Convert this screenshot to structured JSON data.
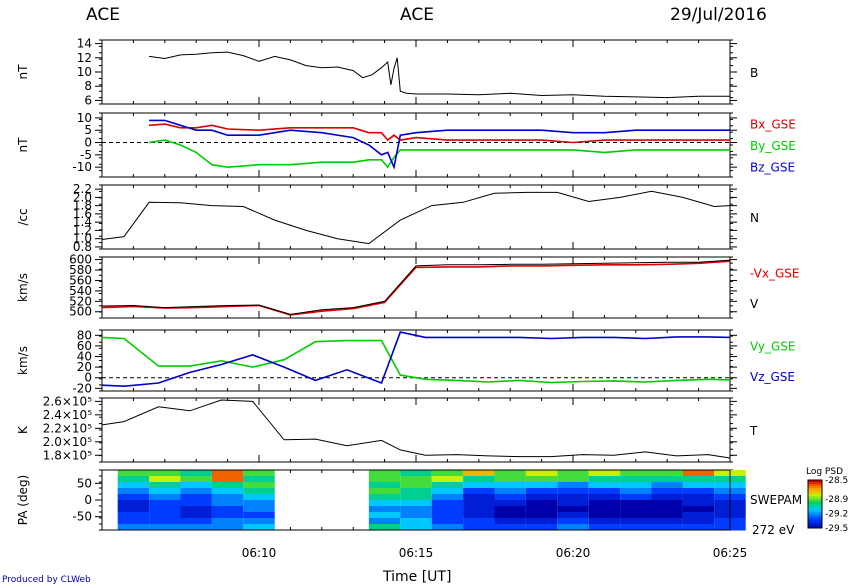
{
  "header": {
    "left_title": "ACE",
    "center_title": "ACE",
    "date": "29/Jul/2016"
  },
  "footer": {
    "credit": "Produced by CLWeb"
  },
  "colors": {
    "black": "#000000",
    "red": "#dd0000",
    "green": "#00cc00",
    "blue": "#0000cc"
  },
  "chart_data": [
    {
      "type": "line",
      "ylabel": "nT",
      "ylim": [
        5.5,
        14.5
      ],
      "yticks": [
        "14",
        "12",
        "10",
        "8",
        "6"
      ],
      "ytick_values": [
        14,
        12,
        10,
        8,
        6
      ],
      "series": [
        {
          "name": "B",
          "color": "#000000",
          "x": [
            6.5,
            7,
            7.5,
            8,
            8.5,
            9,
            9.5,
            10,
            10.5,
            11,
            11.5,
            12,
            12.5,
            13,
            13.3,
            13.6,
            13.9,
            14.1,
            14.2,
            14.3,
            14.4,
            14.5,
            14.7,
            15,
            16,
            17,
            18,
            19,
            20,
            21,
            22,
            23,
            24,
            25
          ],
          "y": [
            12.2,
            11.9,
            12.4,
            12.5,
            12.7,
            12.8,
            12.3,
            11.5,
            12.2,
            11.7,
            10.9,
            10.6,
            10.7,
            10.2,
            9.2,
            9.6,
            10.6,
            11.4,
            8.2,
            10.5,
            12,
            7.3,
            7.0,
            6.9,
            6.9,
            6.8,
            7.0,
            6.7,
            6.8,
            6.6,
            6.5,
            6.4,
            6.6,
            6.6
          ]
        }
      ]
    },
    {
      "type": "line",
      "ylabel": "nT",
      "ylim": [
        -14,
        12
      ],
      "yticks": [
        "10",
        "5",
        "0",
        "-5",
        "-10"
      ],
      "ytick_values": [
        10,
        5,
        0,
        -5,
        -10
      ],
      "dashed_zero": true,
      "series": [
        {
          "name": "Bx_GSE",
          "color": "#dd0000",
          "x": [
            6.5,
            7,
            7.5,
            8,
            8.5,
            9,
            10,
            11,
            12,
            13,
            13.5,
            13.9,
            14.1,
            14.3,
            14.5,
            15,
            16,
            17,
            18,
            19,
            20,
            21,
            22,
            23,
            24,
            25
          ],
          "y": [
            7,
            7.5,
            6,
            6,
            7,
            5.5,
            5,
            6,
            6,
            6,
            4,
            4,
            1,
            3,
            1,
            2,
            1,
            1,
            1,
            1,
            0,
            1,
            1,
            1,
            1,
            1
          ]
        },
        {
          "name": "By_GSE",
          "color": "#00cc00",
          "x": [
            6.5,
            7,
            7.5,
            8,
            8.5,
            9,
            10,
            11,
            12,
            13,
            13.5,
            13.9,
            14.1,
            14.3,
            14.5,
            15,
            16,
            17,
            18,
            19,
            20,
            21,
            22,
            23,
            24,
            25
          ],
          "y": [
            0,
            1,
            -1,
            -4,
            -9,
            -10,
            -9,
            -9,
            -8,
            -8,
            -7,
            -7,
            -10,
            -6,
            -3,
            -3,
            -3,
            -3,
            -3,
            -3,
            -3,
            -4,
            -3,
            -3,
            -3,
            -3
          ]
        },
        {
          "name": "Bz_GSE",
          "color": "#0000cc",
          "x": [
            6.5,
            7,
            7.5,
            8,
            8.5,
            9,
            10,
            11,
            12,
            13,
            13.5,
            13.9,
            14.1,
            14.3,
            14.5,
            15,
            16,
            17,
            18,
            19,
            20,
            21,
            22,
            23,
            24,
            25
          ],
          "y": [
            9,
            9,
            7,
            5,
            5,
            3,
            3,
            5,
            4,
            2,
            -1,
            -5,
            -4,
            -10,
            3,
            4,
            5,
            5,
            5,
            5,
            4,
            4,
            5,
            5,
            5,
            5
          ]
        }
      ],
      "legend": [
        {
          "name": "Bx_GSE",
          "color": "#dd0000"
        },
        {
          "name": "By_GSE",
          "color": "#00cc00"
        },
        {
          "name": "Bz_GSE",
          "color": "#0000cc"
        }
      ]
    },
    {
      "type": "line",
      "ylabel": "/cc",
      "ylim": [
        0.75,
        2.3
      ],
      "yticks": [
        "2.2",
        "2.0",
        "1.8",
        "1.6",
        "1.4",
        "1.2",
        "1.0",
        "0.8"
      ],
      "ytick_values": [
        2.2,
        2.0,
        1.8,
        1.6,
        1.4,
        1.2,
        1.0,
        0.8
      ],
      "series": [
        {
          "name": "N",
          "color": "#000000",
          "x": [
            5,
            5.7,
            6.5,
            7.5,
            8.5,
            9.5,
            10.5,
            11.5,
            12.5,
            13.5,
            14.5,
            15.5,
            16.5,
            17.5,
            18.5,
            19.5,
            20.5,
            21.5,
            22.5,
            23.5,
            24.5,
            25
          ],
          "y": [
            0.98,
            1.05,
            1.88,
            1.87,
            1.8,
            1.78,
            1.45,
            1.2,
            1.0,
            0.88,
            1.45,
            1.8,
            1.88,
            2.1,
            2.12,
            2.12,
            1.9,
            2.0,
            2.15,
            2.0,
            1.78,
            1.8
          ]
        }
      ]
    },
    {
      "type": "line",
      "ylabel": "km/s",
      "ylim": [
        488,
        605
      ],
      "yticks": [
        "600",
        "580",
        "560",
        "540",
        "520",
        "500"
      ],
      "ytick_values": [
        600,
        580,
        560,
        540,
        520,
        500
      ],
      "series": [
        {
          "name": "-Vx_GSE",
          "color": "#dd0000",
          "x": [
            5,
            6,
            7,
            8,
            9,
            10,
            11,
            12,
            13,
            14,
            15,
            16,
            17,
            18,
            19,
            20,
            21,
            22,
            23,
            24,
            25
          ],
          "y": [
            508,
            510,
            507,
            508,
            510,
            512,
            494,
            501,
            506,
            518,
            585,
            586,
            586,
            588,
            588,
            589,
            590,
            590,
            591,
            593,
            597
          ]
        },
        {
          "name": "V",
          "color": "#000000",
          "x": [
            5,
            6,
            7,
            8,
            9,
            10,
            11,
            12,
            13,
            14,
            15,
            16,
            17,
            18,
            19,
            20,
            21,
            22,
            23,
            24,
            25
          ],
          "y": [
            511,
            512,
            508,
            510,
            512,
            513,
            495,
            504,
            508,
            520,
            588,
            590,
            590,
            591,
            591,
            592,
            593,
            594,
            595,
            595,
            599
          ]
        }
      ],
      "legend": [
        {
          "name": "-Vx_GSE",
          "color": "#dd0000"
        },
        {
          "name": "V",
          "color": "#000000"
        }
      ]
    },
    {
      "type": "line",
      "ylabel": "km/s",
      "ylim": [
        -25,
        90
      ],
      "yticks": [
        "80",
        "60",
        "40",
        "20",
        "0",
        "-20"
      ],
      "ytick_values": [
        80,
        60,
        40,
        20,
        0,
        -20
      ],
      "dashed_zero": true,
      "series": [
        {
          "name": "Vy_GSE",
          "color": "#00cc00",
          "x": [
            5,
            5.7,
            6.8,
            7.8,
            8.8,
            9.8,
            10.8,
            11.8,
            12.8,
            13.9,
            14.5,
            15.3,
            16.3,
            17.3,
            18.3,
            19.3,
            20.3,
            21.3,
            22.3,
            23.3,
            24.3,
            25
          ],
          "y": [
            76,
            74,
            22,
            22,
            32,
            20,
            34,
            68,
            70,
            70,
            5,
            -3,
            -5,
            -8,
            -5,
            -9,
            -7,
            -6,
            -8,
            -5,
            -3,
            -4
          ]
        },
        {
          "name": "Vz_GSE",
          "color": "#0000cc",
          "x": [
            5,
            5.7,
            6.8,
            7.8,
            8.8,
            9.8,
            10.8,
            11.8,
            12.8,
            13.9,
            14.5,
            15.3,
            16.3,
            17.3,
            18.3,
            19.3,
            20.3,
            21.3,
            22.3,
            23.3,
            24.3,
            25
          ],
          "y": [
            -14,
            -16,
            -10,
            10,
            25,
            43,
            20,
            -5,
            15,
            -10,
            86,
            76,
            76,
            76,
            76,
            74,
            76,
            76,
            74,
            77,
            77,
            76
          ]
        }
      ],
      "legend": [
        {
          "name": "Vy_GSE",
          "color": "#00cc00"
        },
        {
          "name": "Vz_GSE",
          "color": "#0000cc"
        }
      ]
    },
    {
      "type": "line",
      "ylabel": "K",
      "ylim": [
        170000,
        265000
      ],
      "yticks": [
        "2.6×10⁵",
        "2.4×10⁵",
        "2.2×10⁵",
        "2.0×10⁵",
        "1.8×10⁵"
      ],
      "ytick_values": [
        260000,
        240000,
        220000,
        200000,
        180000
      ],
      "series": [
        {
          "name": "T",
          "color": "#000000",
          "x": [
            5,
            5.7,
            6.8,
            7.8,
            8.8,
            9.8,
            10.8,
            11.8,
            12.8,
            13.9,
            14.5,
            15.3,
            16.3,
            17.3,
            18.3,
            19.3,
            20.3,
            21.3,
            22.3,
            23.3,
            24.3,
            25
          ],
          "y": [
            225000,
            230000,
            252000,
            246000,
            262000,
            260000,
            203000,
            204000,
            194000,
            202000,
            188000,
            180000,
            181000,
            179000,
            178000,
            178000,
            181000,
            180000,
            185000,
            179000,
            181000,
            176000
          ]
        }
      ]
    },
    {
      "type": "heatmap",
      "ylabel": "PA (deg)",
      "ylim": [
        -90,
        90
      ],
      "yticks": [
        "50",
        "0",
        "-50"
      ],
      "ytick_values": [
        50,
        0,
        -50
      ],
      "instrument_label": "SWEPAM",
      "energy_label": "272 eV",
      "colorbar": {
        "title": "Log PSD",
        "range": [
          -29.5,
          -28.5
        ],
        "ticks": [
          "-28.5",
          "-28.9",
          "-29.2",
          "-29.5"
        ],
        "tick_values": [
          -28.5,
          -28.9,
          -29.2,
          -29.5
        ]
      },
      "time_bins": [
        5.5,
        6.5,
        7.5,
        8.5,
        9.5,
        10.5,
        11.5,
        12.5,
        13.5,
        14.5,
        15.5,
        16.5,
        17.5,
        18.5,
        19.5,
        20.5,
        21.5,
        22.5,
        23.5,
        24.5,
        25.5
      ],
      "data_gap": [
        10.0,
        13.0
      ],
      "pa_bins": 10,
      "values": [
        [
          -28.9,
          -28.9,
          -29.0,
          -28.6,
          -28.9,
          null,
          null,
          null,
          -28.9,
          -29.0,
          -28.9,
          -28.7,
          -28.9,
          -28.8,
          -28.9,
          -28.8,
          -28.9,
          -28.9,
          -28.6,
          -28.8
        ],
        [
          -29.0,
          -28.8,
          -28.9,
          -28.6,
          -29.0,
          null,
          null,
          null,
          -28.9,
          -28.9,
          -28.8,
          -29.0,
          -28.9,
          -28.9,
          -28.9,
          -29.0,
          -29.0,
          -29.0,
          -29.0,
          -29.0
        ],
        [
          -29.1,
          -29.0,
          -29.1,
          -29.0,
          -28.9,
          null,
          null,
          null,
          -29.0,
          -28.9,
          -29.0,
          -29.1,
          -29.1,
          -29.1,
          -29.2,
          -29.1,
          -29.1,
          -29.2,
          -29.1,
          -29.1
        ],
        [
          -29.2,
          -29.1,
          -29.2,
          -29.1,
          -29.0,
          null,
          null,
          null,
          -28.9,
          -29.0,
          -29.1,
          -29.3,
          -29.2,
          -29.3,
          -29.3,
          -29.3,
          -29.2,
          -29.3,
          -29.3,
          -29.2
        ],
        [
          -29.3,
          -29.2,
          -29.3,
          -29.2,
          -29.1,
          null,
          null,
          null,
          -29.0,
          -29.0,
          -29.2,
          -29.4,
          -29.3,
          -29.4,
          -29.4,
          -29.4,
          -29.3,
          -29.4,
          -29.4,
          -29.3
        ],
        [
          -29.4,
          -29.3,
          -29.3,
          -29.2,
          -29.2,
          null,
          null,
          null,
          -29.1,
          -29.1,
          -29.3,
          -29.4,
          -29.4,
          -29.5,
          -29.4,
          -29.5,
          -29.5,
          -29.5,
          -29.4,
          -29.4
        ],
        [
          -29.4,
          -29.3,
          -29.4,
          -29.3,
          -29.2,
          null,
          null,
          null,
          -29.2,
          -29.2,
          -29.3,
          -29.4,
          -29.5,
          -29.5,
          -29.5,
          -29.5,
          -29.5,
          -29.5,
          -29.5,
          -29.4
        ],
        [
          -29.3,
          -29.3,
          -29.4,
          -29.3,
          -29.3,
          null,
          null,
          null,
          -29.1,
          -29.2,
          -29.3,
          -29.4,
          -29.5,
          -29.5,
          -29.4,
          -29.5,
          -29.5,
          -29.5,
          -29.4,
          -29.4
        ],
        [
          -29.3,
          -29.3,
          -29.3,
          -29.2,
          -29.2,
          null,
          null,
          null,
          -29.2,
          -29.1,
          -29.3,
          -29.3,
          -29.4,
          -29.4,
          -29.3,
          -29.4,
          -29.4,
          -29.4,
          -29.4,
          -29.3
        ],
        [
          -29.2,
          -29.2,
          -29.2,
          -29.2,
          -29.1,
          null,
          null,
          null,
          -29.0,
          -29.1,
          -29.2,
          -29.3,
          -29.3,
          -29.3,
          -29.2,
          -29.3,
          -29.3,
          -29.3,
          -29.3,
          -29.3
        ]
      ]
    }
  ],
  "xaxis": {
    "label": "Time [UT]",
    "xlim": [
      5,
      25
    ],
    "ticks": [
      {
        "value": 10,
        "label": "06:10"
      },
      {
        "value": 15,
        "label": "06:15"
      },
      {
        "value": 20,
        "label": "06:20"
      },
      {
        "value": 25,
        "label": "06:25"
      }
    ]
  }
}
